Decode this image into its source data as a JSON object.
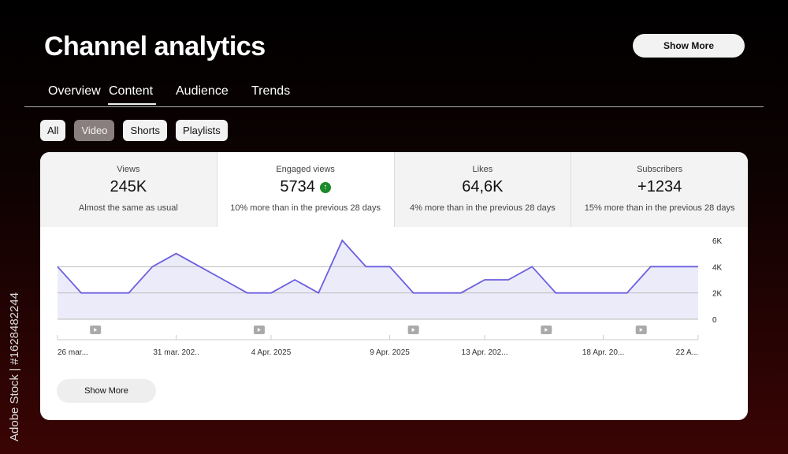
{
  "header": {
    "title": "Channel analytics",
    "show_more": "Show More"
  },
  "tabs": [
    {
      "label": "Overview"
    },
    {
      "label": "Content",
      "active": true
    },
    {
      "label": "Audience"
    },
    {
      "label": "Trends"
    }
  ],
  "chips": [
    {
      "label": "All"
    },
    {
      "label": "Video",
      "selected": true
    },
    {
      "label": "Shorts"
    },
    {
      "label": "Playlists"
    }
  ],
  "stats": [
    {
      "label": "Views",
      "value": "245K",
      "sub": "Almost the same as usual"
    },
    {
      "label": "Engaged views",
      "value": "5734",
      "sub": "10% more than in the previous 28 days",
      "trend": "up-arrow-icon"
    },
    {
      "label": "Likes",
      "value": "64,6K",
      "sub": "4% more than in the previous 28 days"
    },
    {
      "label": "Subscribers",
      "value": "+1234",
      "sub": "15% more than in the previous 28 days"
    }
  ],
  "colors": {
    "line": "#6a5fe0",
    "fill": "#ecebfa",
    "up": "#1b8a2a"
  },
  "chart_data": {
    "type": "area",
    "values": [
      4000,
      2000,
      2000,
      2000,
      4000,
      5000,
      4000,
      3000,
      2000,
      2000,
      3000,
      2000,
      6000,
      4000,
      4000,
      2000,
      2000,
      2000,
      3000,
      3000,
      4000,
      2000,
      2000,
      2000,
      2000,
      4000,
      4000,
      4000
    ],
    "ylim": [
      0,
      6000
    ],
    "yticks": [
      {
        "v": 6000,
        "label": "6K"
      },
      {
        "v": 4000,
        "label": "4K"
      },
      {
        "v": 2000,
        "label": "2K"
      },
      {
        "v": 0,
        "label": "0"
      }
    ],
    "xticks": [
      {
        "i": 0,
        "label": "26 mar..."
      },
      {
        "i": 5,
        "label": "31 mar.  202.."
      },
      {
        "i": 9,
        "label": "4 Apr.  2025"
      },
      {
        "i": 14,
        "label": "9 Apr.  2025"
      },
      {
        "i": 18,
        "label": "13 Apr.  202..."
      },
      {
        "i": 23,
        "label": "18 Apr.  20..."
      },
      {
        "i": 27,
        "label": "22 A..."
      }
    ],
    "video_markers": [
      1.6,
      8.5,
      15.0,
      20.6,
      24.6
    ]
  },
  "footer": {
    "show_more": "Show More"
  },
  "watermark": "Adobe Stock | #1628482244"
}
